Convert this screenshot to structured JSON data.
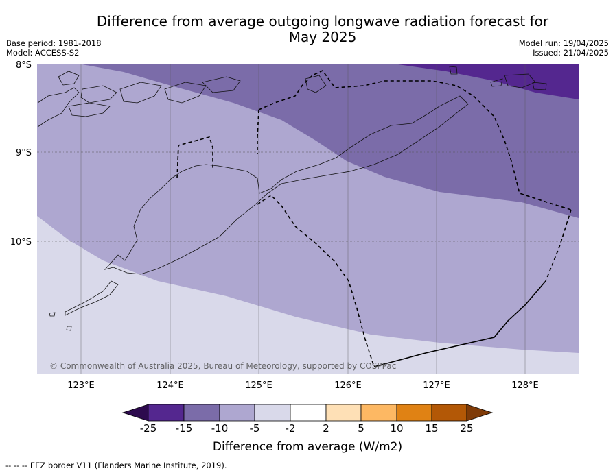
{
  "title": "Difference from average outgoing longwave radiation forecast for May 2025",
  "title_line1": "Difference from average outgoing longwave radiation forecast for",
  "title_line2": "May 2025",
  "base_period": "Base period: 1981-2018",
  "model": "Model: ACCESS-S2",
  "model_run": "Model run: 19/04/2025",
  "issued": "Issued: 21/04/2025",
  "copyright": "© Commonwealth of Australia 2025, Bureau of Meteorology, supported by COSPPac",
  "latitude_labels": [
    "8°S",
    "9°S",
    "10°S"
  ],
  "longitude_labels": [
    "123°E",
    "124°E",
    "125°E",
    "126°E",
    "127°E",
    "128°E"
  ],
  "colorbar": {
    "label": "Difference from average (W/m2)",
    "ticks": [
      "-25",
      "-15",
      "-10",
      "-5",
      "-2",
      "2",
      "5",
      "10",
      "15",
      "25"
    ],
    "colors": [
      "#2d0a4e",
      "#54278f",
      "#7b6ca9",
      "#aea7d0",
      "#d9d9ea",
      "#ffffff",
      "#fee0b6",
      "#fdb863",
      "#e08214",
      "#b35806",
      "#7f3b08"
    ]
  },
  "legend_footer": "--  --  -- EEZ border V11 (Flanders Marine Institute, 2019).",
  "icons": {
    "contour-lines": "coastline",
    "dashed-line": "eez-border"
  }
}
